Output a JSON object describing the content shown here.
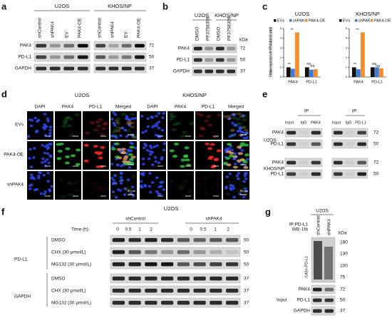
{
  "panels": {
    "a": {
      "label": "a",
      "groups": [
        "U2OS",
        "KHOS/NP"
      ],
      "lanes": [
        "shControl",
        "shPAK4",
        "EV",
        "PAK4-OE",
        "shControl",
        "shPAK4",
        "EV",
        "PAK4-OE"
      ],
      "rows": [
        "PAK4",
        "PD-L1",
        "GAPDH"
      ],
      "kda": [
        72,
        50,
        37
      ]
    },
    "b": {
      "label": "b",
      "groups": [
        "U2OS",
        "KHOS/NP"
      ],
      "lanes": [
        "DMSO",
        "PF3758309",
        "DMSO",
        "PF3758309"
      ],
      "rows": [
        "PAK4",
        "PD-L1",
        "GAPDH"
      ],
      "kda_title": "kDa",
      "kda": [
        72,
        50,
        37
      ]
    },
    "c": {
      "label": "c"
    },
    "d": {
      "label": "d",
      "groups": [
        "U2OS",
        "KHOS/NP"
      ],
      "columns": [
        "DAPI",
        "PAK4",
        "PD-L1",
        "Merged",
        "DAPI",
        "PAK4",
        "PD-L1",
        "Merged"
      ],
      "rows": [
        "EVs",
        "PAK4-OE",
        "shPAK4"
      ],
      "scale": "50 μm"
    },
    "e": {
      "label": "e",
      "ip": [
        "IP",
        "IP"
      ],
      "lanes": [
        "Input",
        "IgG",
        "PAK4",
        "Input",
        "IgG",
        "PD-L1"
      ],
      "cells": [
        "U2OS",
        "KHOS/NP"
      ],
      "rows": [
        "PAK4",
        "PD-L1",
        "PAK4",
        "PD-L1"
      ],
      "kda": [
        72,
        50,
        72,
        50
      ]
    },
    "f": {
      "label": "f",
      "title": "U2OS",
      "groups": [
        "shControl",
        "shPAK4"
      ],
      "time_label": "Time (h)",
      "times": [
        "0",
        "0.5",
        "1",
        "2",
        "0",
        "0.5",
        "1",
        "2"
      ],
      "proteins": [
        "PD-L1",
        "GAPDH"
      ],
      "conditions": [
        "DMSO",
        "CHX (30 μmol/L)",
        "MG132 (30 μmol/L)",
        "DMSO",
        "CHX (30 μmol/L)",
        "MG132 (30 μmol/L)"
      ],
      "kda": [
        50,
        50,
        50,
        37,
        37,
        37
      ]
    },
    "g": {
      "label": "g",
      "title": "U2OS",
      "ip": "IP:PD-L1",
      "wb": "WB: Ub",
      "lanes": [
        "shControl",
        "shPAK4"
      ],
      "kda_title": "kDa",
      "ub_label": "(Ub)n-PD-L1",
      "markers": [
        180,
        130,
        100,
        75
      ],
      "input_label": "Input",
      "input_rows": [
        "PAK4",
        "PD-L1",
        "GAPDH"
      ],
      "input_kda": [
        72,
        50,
        37
      ]
    }
  },
  "chart_data": [
    {
      "type": "bar",
      "title": "U2OS",
      "y_label": "Relative expression of mRNA (fold of control)",
      "categories": [
        "PAK4",
        "PD-L1"
      ],
      "series": [
        {
          "name": "EVs",
          "color": "#111111",
          "values": [
            1,
            1
          ]
        },
        {
          "name": "shPAK4",
          "color": "#3f7ad6",
          "values": [
            0.85,
            0.75
          ]
        },
        {
          "name": "PAK4-OE",
          "color": "#f28e2b",
          "values": [
            4.6,
            0.8
          ]
        }
      ],
      "ylim": [
        0,
        5
      ],
      "yticks": [
        0,
        1,
        2,
        3,
        4,
        5
      ],
      "annotations": [
        "**",
        "**",
        "ns",
        "ns"
      ]
    },
    {
      "type": "bar",
      "title": "KHOS/NP",
      "categories": [
        "PAK4",
        "PD-L1"
      ],
      "series": [
        {
          "name": "EVs",
          "color": "#111111",
          "values": [
            1,
            1
          ]
        },
        {
          "name": "shPAK4",
          "color": "#3f7ad6",
          "values": [
            0.8,
            1
          ]
        },
        {
          "name": "PAK4-OE",
          "color": "#f28e2b",
          "values": [
            4.6,
            0.9
          ]
        }
      ],
      "ylim": [
        0,
        5
      ],
      "yticks": [
        0,
        1,
        2,
        3,
        4,
        5
      ],
      "annotations": [
        "**",
        "**",
        "ns",
        "ns"
      ]
    }
  ]
}
